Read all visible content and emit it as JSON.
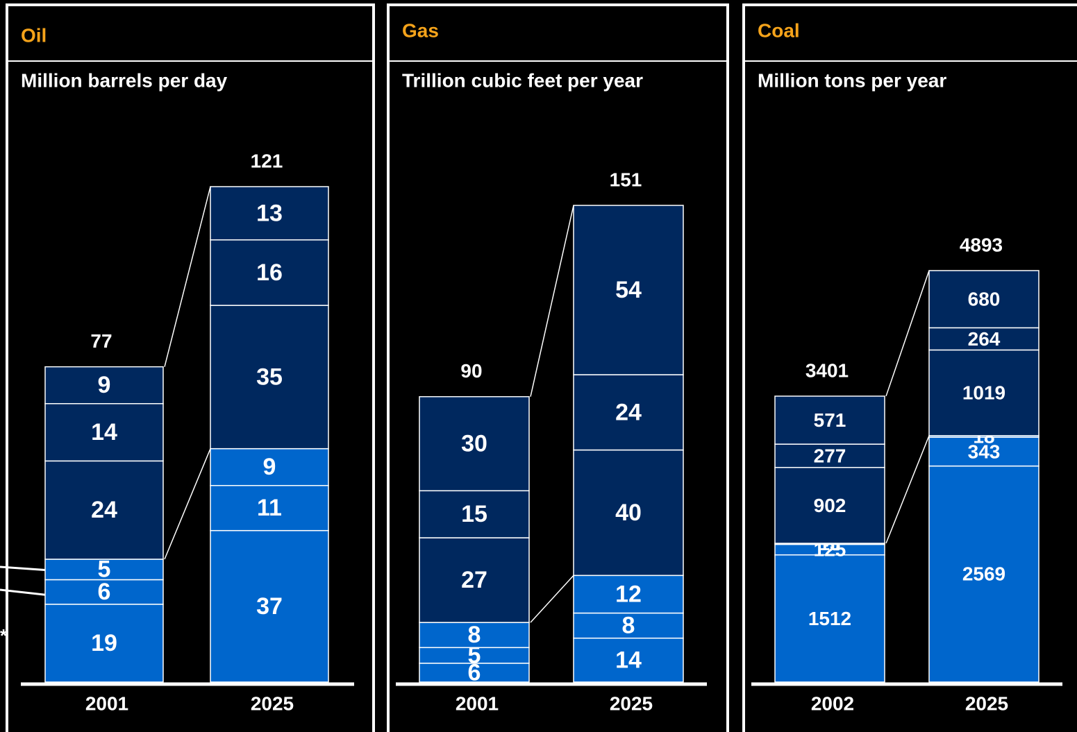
{
  "chart_data": [
    {
      "type": "bar",
      "stacked": true,
      "title": "Oil",
      "subtitle": "Million barrels per day",
      "categories": [
        "2001",
        "2025"
      ],
      "totals": [
        77,
        121
      ],
      "footnote_mark": "*",
      "series": [
        {
          "color": "#0066cc",
          "values": [
            19,
            37
          ]
        },
        {
          "color": "#0066cc",
          "values": [
            6,
            11
          ]
        },
        {
          "color": "#0066cc",
          "values": [
            5,
            9
          ]
        },
        {
          "color": "#00285e",
          "values": [
            24,
            35
          ]
        },
        {
          "color": "#00285e",
          "values": [
            14,
            16
          ]
        },
        {
          "color": "#00285e",
          "values": [
            9,
            13
          ]
        }
      ]
    },
    {
      "type": "bar",
      "stacked": true,
      "title": "Gas",
      "subtitle": "Trillion cubic feet per year",
      "categories": [
        "2001",
        "2025"
      ],
      "totals": [
        90,
        151
      ],
      "series": [
        {
          "color": "#0066cc",
          "values": [
            6,
            14
          ]
        },
        {
          "color": "#0066cc",
          "values": [
            5,
            8
          ]
        },
        {
          "color": "#0066cc",
          "values": [
            8,
            12
          ]
        },
        {
          "color": "#00285e",
          "values": [
            27,
            40
          ]
        },
        {
          "color": "#00285e",
          "values": [
            15,
            24
          ]
        },
        {
          "color": "#00285e",
          "values": [
            30,
            54
          ]
        }
      ]
    },
    {
      "type": "bar",
      "stacked": true,
      "title": "Coal",
      "subtitle": "Million tons per year",
      "categories": [
        "2002",
        "2025"
      ],
      "totals": [
        3401,
        4893
      ],
      "series": [
        {
          "color": "#0066cc",
          "values": [
            1512,
            2569
          ]
        },
        {
          "color": "#0066cc",
          "values": [
            125,
            343
          ]
        },
        {
          "color": "#0066cc",
          "values": [
            13,
            18
          ]
        },
        {
          "color": "#00285e",
          "values": [
            902,
            1019
          ]
        },
        {
          "color": "#00285e",
          "values": [
            277,
            264
          ]
        },
        {
          "color": "#00285e",
          "values": [
            571,
            680
          ]
        }
      ]
    }
  ]
}
